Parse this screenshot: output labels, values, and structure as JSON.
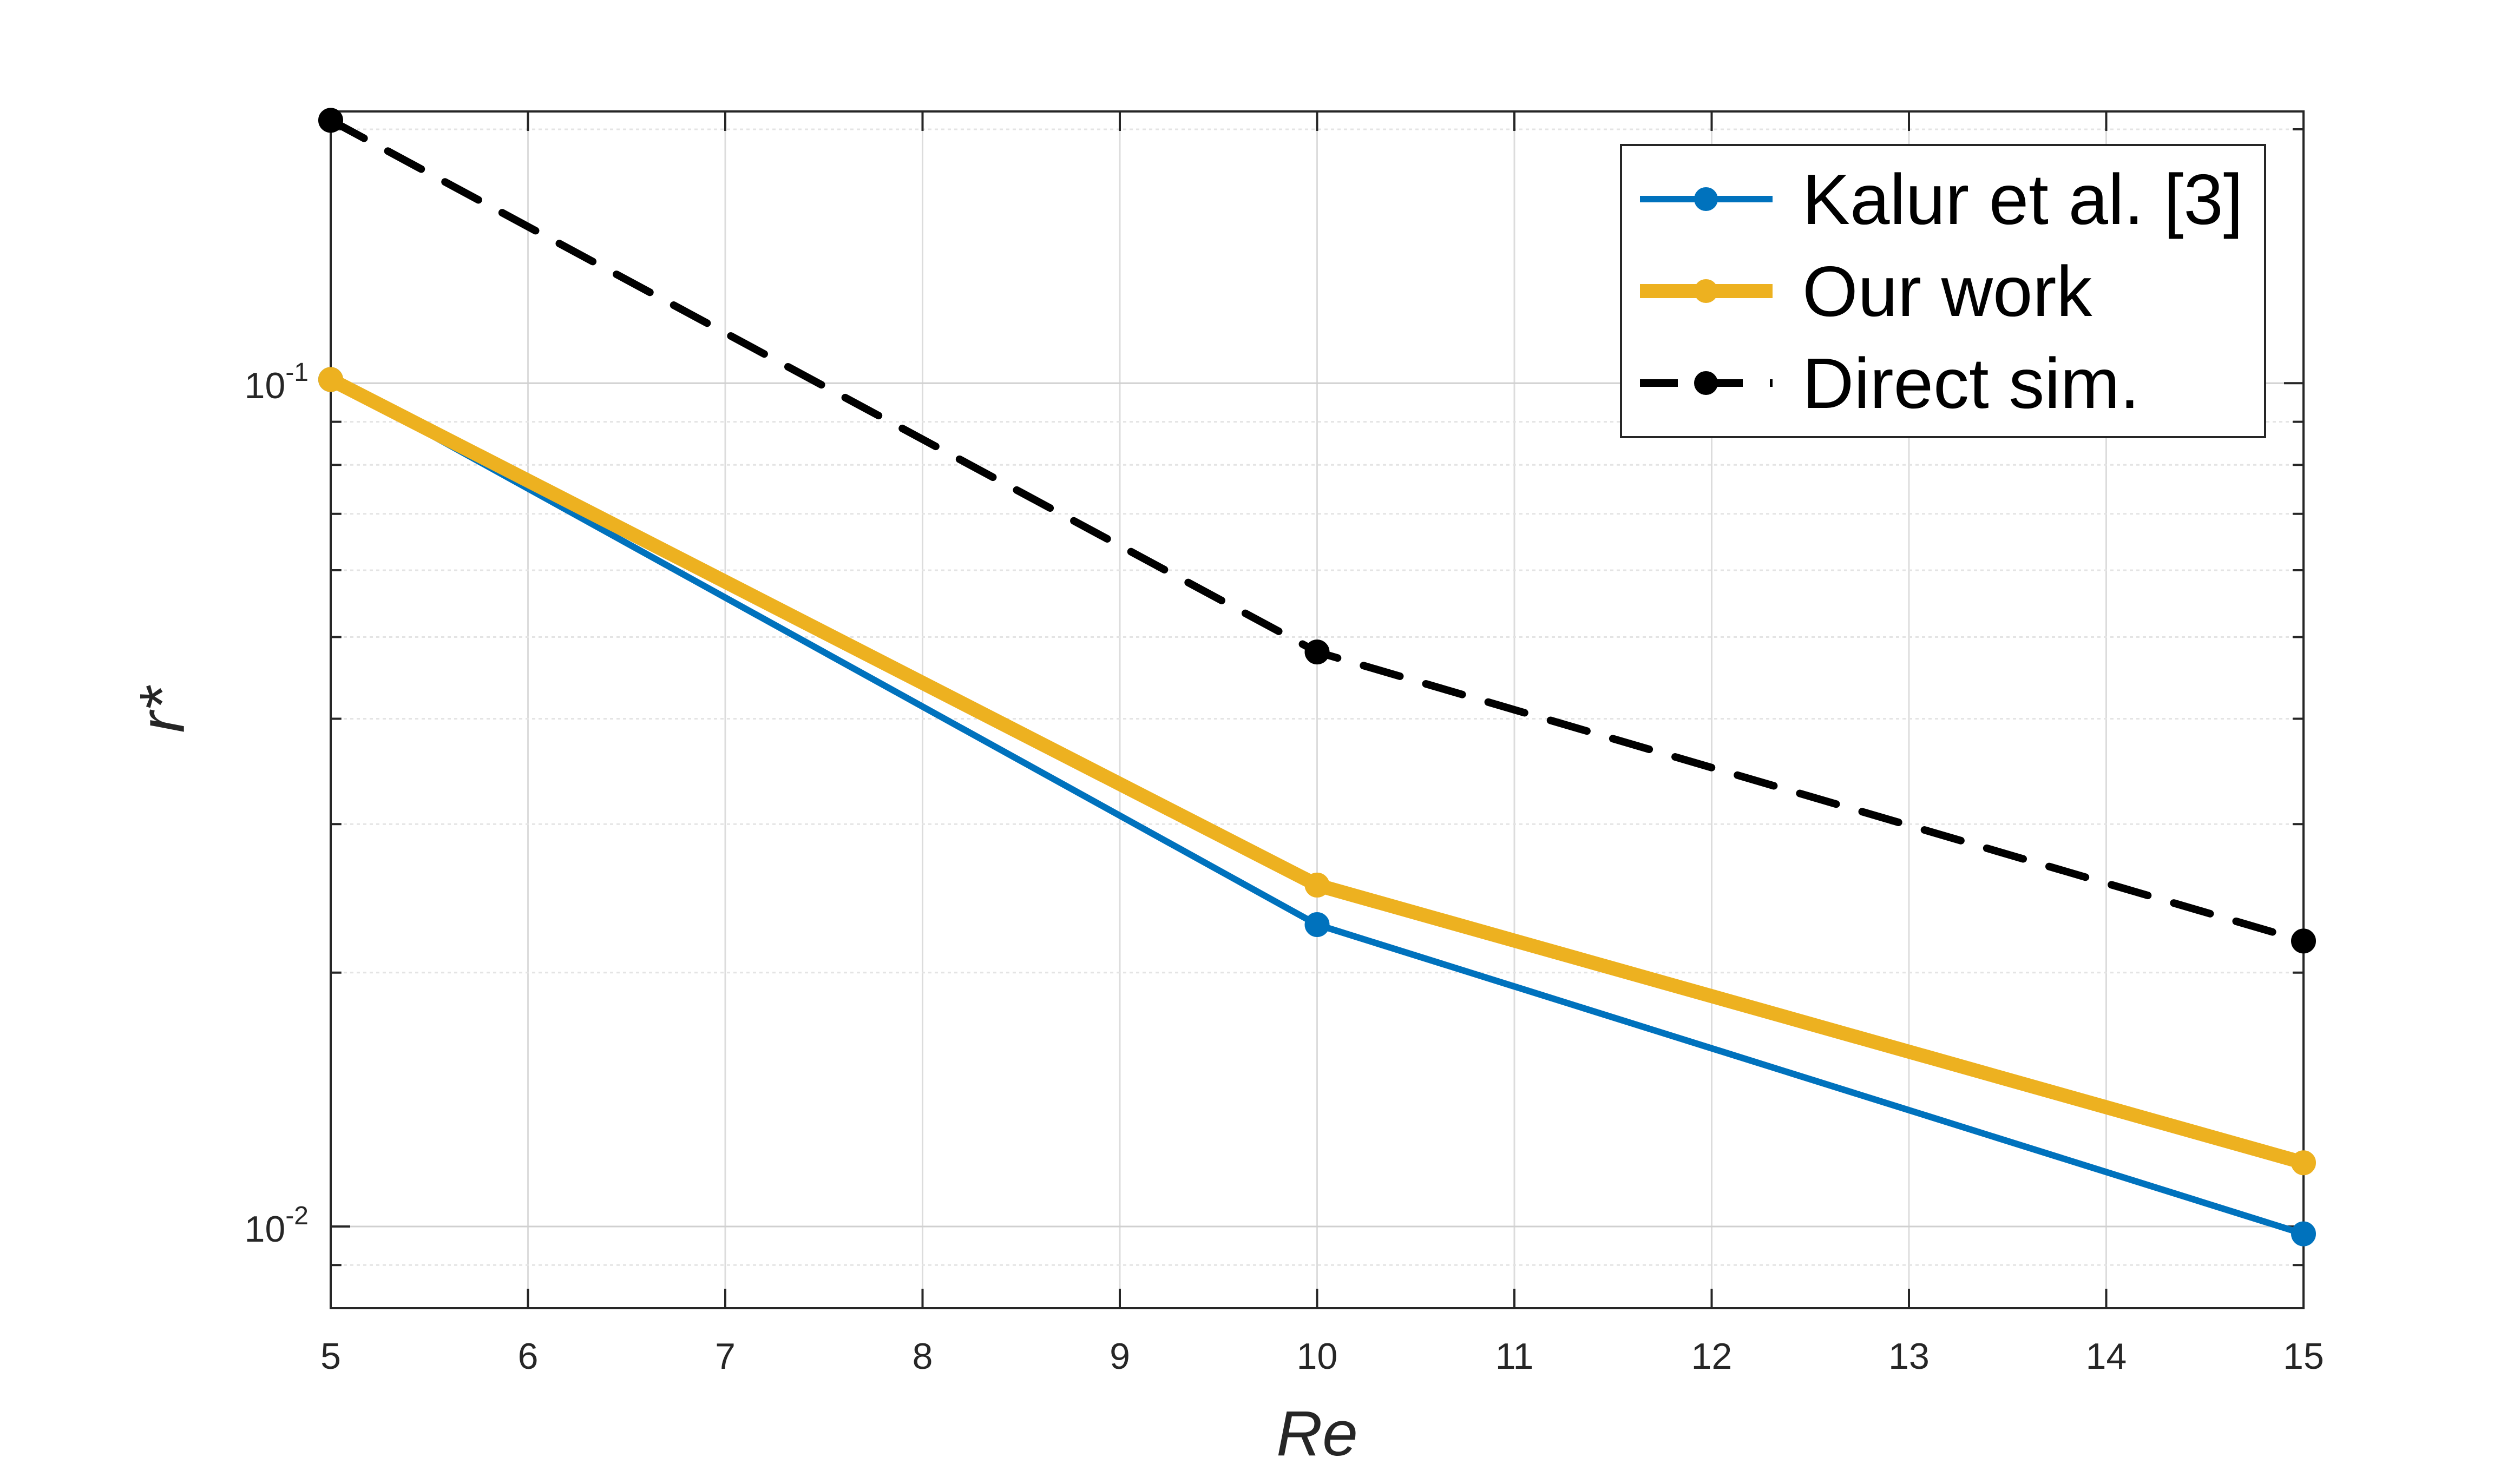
{
  "chart_data": {
    "type": "line",
    "xlabel": "Re",
    "ylabel": "r*",
    "xlim": [
      5,
      15
    ],
    "ylim": [
      0.008,
      0.21
    ],
    "yscale": "log",
    "grid": true,
    "legend_position": "top-right",
    "x_ticks": [
      "5",
      "6",
      "7",
      "8",
      "9",
      "10",
      "11",
      "12",
      "13",
      "14",
      "15"
    ],
    "y_ticks": [
      {
        "base": "10",
        "exp": "-2",
        "value": 0.01
      },
      {
        "base": "10",
        "exp": "-1",
        "value": 0.1
      }
    ],
    "series": [
      {
        "name": "Kalur et al. [3]",
        "x": [
          5,
          10,
          15
        ],
        "y": [
          0.101,
          0.0228,
          0.0098
        ],
        "color": "#0072BD",
        "style": "solid",
        "width": "thin"
      },
      {
        "name": "Our work",
        "x": [
          5,
          10,
          15
        ],
        "y": [
          0.101,
          0.0254,
          0.0119
        ],
        "color": "#EDB120",
        "style": "solid",
        "width": "thick"
      },
      {
        "name": "Direct sim.",
        "x": [
          5,
          10,
          15
        ],
        "y": [
          0.205,
          0.048,
          0.0218
        ],
        "color": "#000000",
        "style": "dashed",
        "width": "medium"
      }
    ]
  }
}
